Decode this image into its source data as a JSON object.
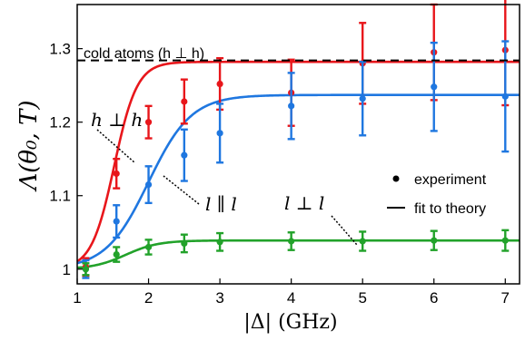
{
  "chart_data": {
    "type": "scatter",
    "xlabel": "|Δ| (GHz)",
    "ylabel": "Λ(θ₀, T)",
    "xlim": [
      1,
      7.2
    ],
    "ylim": [
      0.98,
      1.36
    ],
    "xticks": [
      1,
      2,
      3,
      4,
      5,
      6,
      7
    ],
    "yticks": [
      1,
      1.1,
      1.2,
      1.3
    ],
    "ytick_labels": [
      "1",
      "1.1",
      "1.2",
      "1.3"
    ],
    "grid": false,
    "legend_position": "right",
    "legend": [
      {
        "marker": "dot",
        "label": "experiment"
      },
      {
        "marker": "line",
        "label": "fit to theory"
      }
    ],
    "reference_line": {
      "y": 1.284,
      "label": "cold atoms (h ⊥ h)",
      "style": "dashed",
      "color": "#000000"
    },
    "annotations": [
      {
        "label": "h ⊥ h",
        "series": "h ⊥ h"
      },
      {
        "label": "l ∥ l",
        "series": "l ∥ l"
      },
      {
        "label": "l ⊥ l",
        "series": "l ⊥ l"
      }
    ],
    "series": [
      {
        "key": "hh",
        "color": "#e8161b",
        "x": [
          1.12,
          1.55,
          2.0,
          2.5,
          3.0,
          4.0,
          5.0,
          6.0,
          7.0
        ],
        "y": [
          1.003,
          1.13,
          1.2,
          1.228,
          1.252,
          1.24,
          1.28,
          1.295,
          1.298
        ],
        "err": [
          0.012,
          0.02,
          0.022,
          0.03,
          0.035,
          0.045,
          0.055,
          0.065,
          0.075
        ],
        "fit": {
          "base": 1.0,
          "amp": 0.282,
          "x0": 1.52,
          "w": 0.16
        }
      },
      {
        "key": "ll_par",
        "color": "#1f77e0",
        "x": [
          1.12,
          1.55,
          2.0,
          2.5,
          3.0,
          4.0,
          5.0,
          6.0,
          7.0
        ],
        "y": [
          1.0,
          1.065,
          1.115,
          1.155,
          1.185,
          1.222,
          1.232,
          1.248,
          1.235
        ],
        "err": [
          0.012,
          0.022,
          0.025,
          0.035,
          0.04,
          0.045,
          0.05,
          0.06,
          0.075
        ],
        "fit": {
          "base": 1.0,
          "amp": 0.237,
          "x0": 2.0,
          "w": 0.3
        }
      },
      {
        "key": "ll_perp",
        "color": "#22a22a",
        "x": [
          1.12,
          1.55,
          2.0,
          2.5,
          3.0,
          4.0,
          5.0,
          6.0,
          7.0
        ],
        "y": [
          1.0,
          1.02,
          1.03,
          1.035,
          1.037,
          1.038,
          1.038,
          1.039,
          1.039
        ],
        "err": [
          0.008,
          0.01,
          0.01,
          0.012,
          0.012,
          0.012,
          0.013,
          0.013,
          0.014
        ],
        "fit": {
          "base": 1.0,
          "amp": 0.039,
          "x0": 1.68,
          "w": 0.23
        }
      }
    ]
  }
}
